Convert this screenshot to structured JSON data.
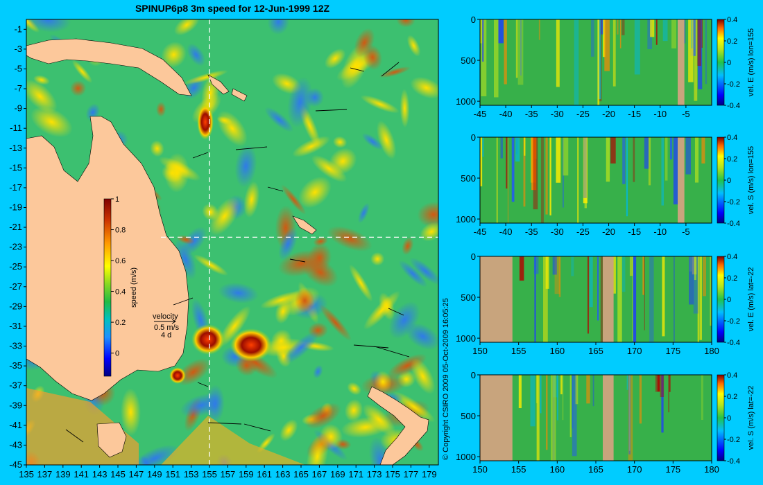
{
  "colors": {
    "background": "#00ccff",
    "land": "#fcc89b",
    "section_mask": "#c8a47d",
    "guide_line": "#ffffff"
  },
  "chart_data": [
    {
      "type": "heatmap",
      "title": "SPINUP6p8 3m speed for 12-Jun-1999 12Z",
      "x_ticks": [
        "135",
        "137",
        "139",
        "141",
        "143",
        "145",
        "147",
        "149",
        "151",
        "153",
        "155",
        "157",
        "159",
        "161",
        "163",
        "165",
        "167",
        "169",
        "171",
        "173",
        "175",
        "177",
        "179"
      ],
      "xlim": [
        135,
        180
      ],
      "y_ticks": [
        "-1",
        "-3",
        "-5",
        "-7",
        "-9",
        "-11",
        "-13",
        "-15",
        "-17",
        "-19",
        "-21",
        "-23",
        "-25",
        "-27",
        "-29",
        "-31",
        "-33",
        "-35",
        "-37",
        "-39",
        "-41",
        "-43",
        "-45"
      ],
      "ylim": [
        -45,
        0
      ],
      "guide_lon": 155,
      "guide_lat": -22,
      "colorbar": {
        "label": "speed (m/s)",
        "ticks": [
          "1",
          "0.8",
          "0.6",
          "0.4",
          "0.2",
          "0"
        ],
        "range": [
          -0.15,
          1
        ]
      },
      "velocity_key": {
        "title": "velocity",
        "speed": "0.5 m/s",
        "duration": "4 d"
      },
      "copyright": "© Copyright CSIRO 2009  05-Oct-2009 16:05:25"
    },
    {
      "type": "heatmap",
      "x_ticks": [
        "-45",
        "-40",
        "-35",
        "-30",
        "-25",
        "-20",
        "-15",
        "-10",
        "-5"
      ],
      "xlim": [
        -45,
        0
      ],
      "y_ticks": [
        "0",
        "500",
        "1000"
      ],
      "ylim": [
        0,
        1050
      ],
      "colorbar_label": "vel. E (m/s) lon=155",
      "colorbar_ticks": [
        "0.4",
        "0.2",
        "0",
        "-0.2",
        "-0.4"
      ],
      "clim": [
        -0.4,
        0.4
      ]
    },
    {
      "type": "heatmap",
      "x_ticks": [
        "-45",
        "-40",
        "-35",
        "-30",
        "-25",
        "-20",
        "-15",
        "-10",
        "-5"
      ],
      "xlim": [
        -45,
        0
      ],
      "y_ticks": [
        "0",
        "500",
        "1000"
      ],
      "ylim": [
        0,
        1050
      ],
      "colorbar_label": "vel. S (m/s) lon=155",
      "colorbar_ticks": [
        "0.4",
        "0.2",
        "0",
        "-0.2",
        "-0.4"
      ],
      "clim": [
        -0.4,
        0.4
      ]
    },
    {
      "type": "heatmap",
      "x_ticks": [
        "150",
        "155",
        "160",
        "165",
        "170",
        "175",
        "180"
      ],
      "xlim": [
        150,
        180
      ],
      "y_ticks": [
        "0",
        "500",
        "1000"
      ],
      "ylim": [
        0,
        1050
      ],
      "colorbar_label": "vel. E (m/s) lat=-22",
      "colorbar_ticks": [
        "0.4",
        "0.2",
        "0",
        "-0.2",
        "-0.4"
      ],
      "clim": [
        -0.4,
        0.4
      ]
    },
    {
      "type": "heatmap",
      "x_ticks": [
        "150",
        "155",
        "160",
        "165",
        "170",
        "175",
        "180"
      ],
      "xlim": [
        150,
        180
      ],
      "y_ticks": [
        "0",
        "500",
        "1000"
      ],
      "ylim": [
        0,
        1050
      ],
      "colorbar_label": "vel. S (m/s) lat=-22",
      "colorbar_ticks": [
        "0.4",
        "0.2",
        "0",
        "-0.2",
        "-0.4"
      ],
      "clim": [
        -0.4,
        0.4
      ]
    }
  ]
}
